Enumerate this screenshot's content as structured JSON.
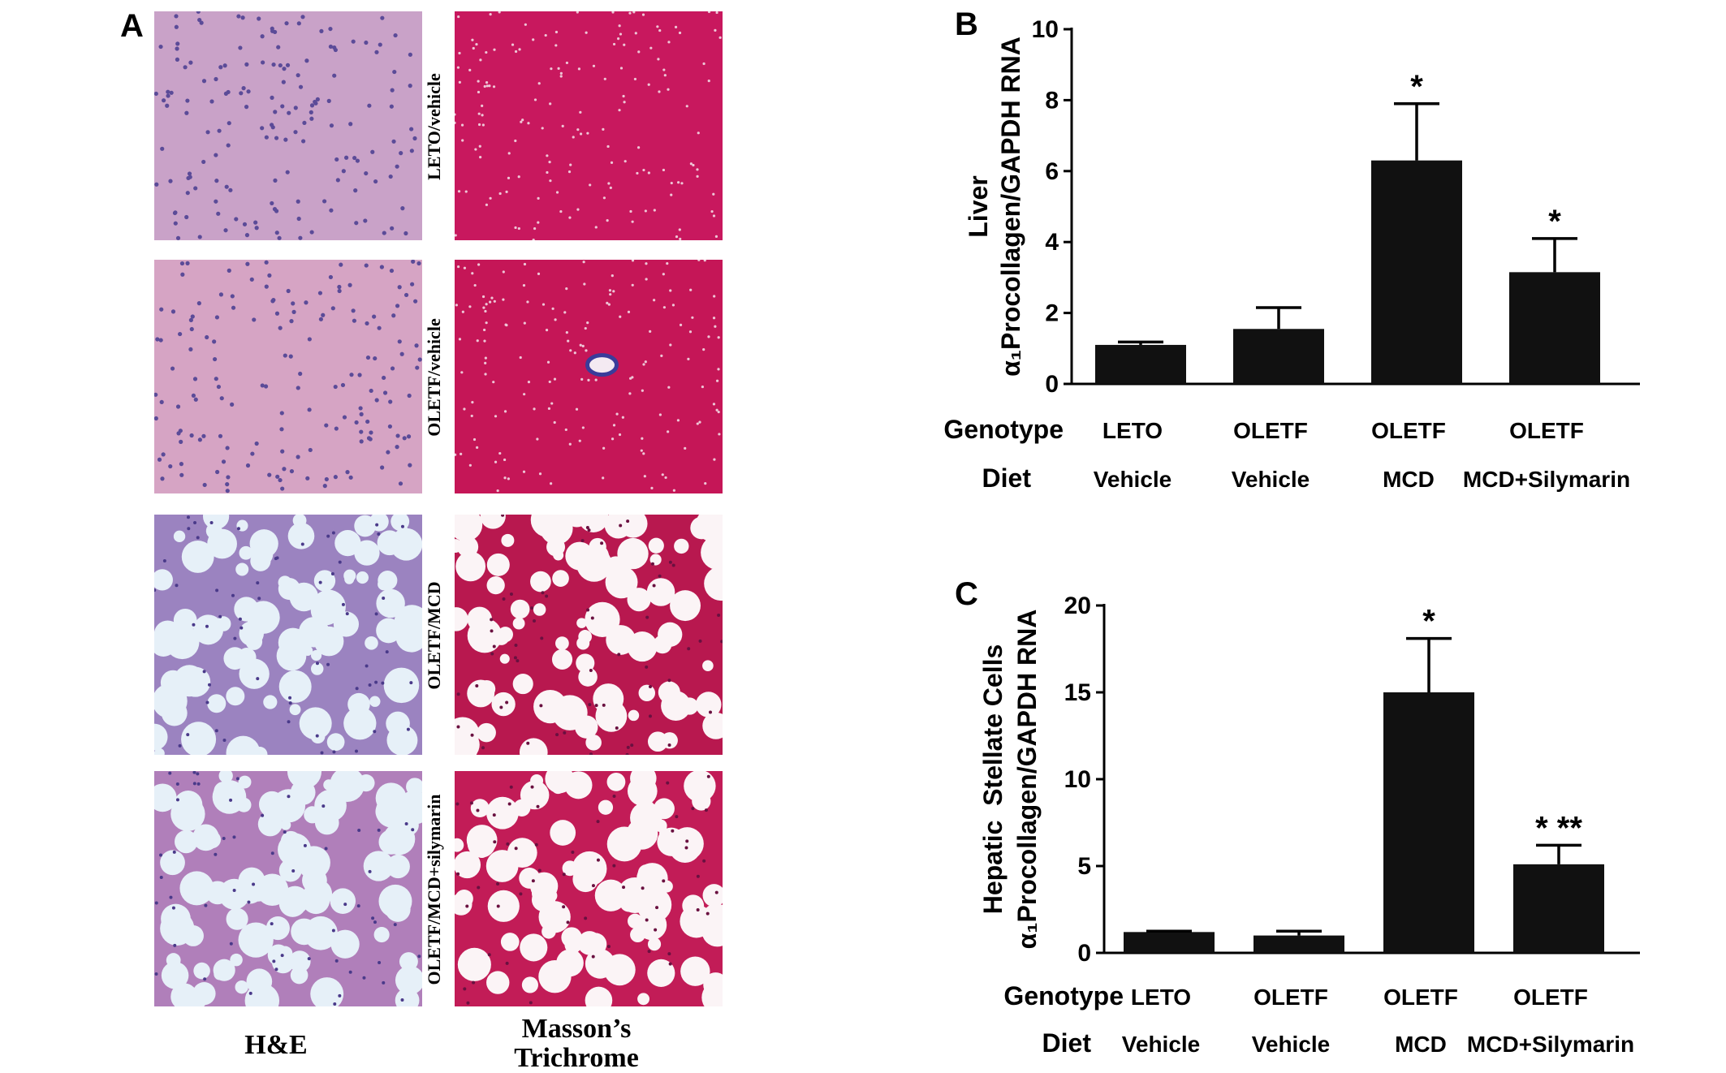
{
  "panel_a": {
    "letter": "A",
    "rows": [
      {
        "label": "LETO/vehicle",
        "he": {
          "bg": "#c9a2c8",
          "vac": 0
        },
        "mt": {
          "bg": "#c8185e",
          "vac": 0
        }
      },
      {
        "label": "OLETF/vehicle",
        "he": {
          "bg": "#d6a4c4",
          "vac": 0
        },
        "mt": {
          "bg": "#c51657",
          "vac": 0
        }
      },
      {
        "label": "OLETF/MCD",
        "he": {
          "bg": "#9b83c0",
          "vac": 1
        },
        "mt": {
          "bg": "#b8184f",
          "vac": 1
        }
      },
      {
        "label": "OLETF/MCD+silymarin",
        "he": {
          "bg": "#b07fba",
          "vac": 1
        },
        "mt": {
          "bg": "#c21c57",
          "vac": 1
        }
      }
    ],
    "columns": [
      "H&E",
      "Masson’s\nTrichrome"
    ]
  },
  "chart_data": [
    {
      "panel": "B",
      "type": "bar",
      "ylabel_line1": "Liver",
      "ylabel_line2": "α₁Procollagen/GAPDH RNA",
      "ylim": [
        0,
        10
      ],
      "yticks": [
        0,
        2,
        4,
        6,
        8,
        10
      ],
      "row_labels": [
        "Genotype",
        "Diet"
      ],
      "genotype": [
        "LETO",
        "OLETF",
        "OLETF",
        "OLETF"
      ],
      "diet": [
        "Vehicle",
        "Vehicle",
        "MCD",
        "MCD+Silymarin"
      ],
      "values": [
        1.1,
        1.55,
        6.3,
        3.15
      ],
      "errors": [
        0.08,
        0.6,
        1.6,
        0.95
      ],
      "annotations": [
        "",
        "",
        "*",
        "*"
      ]
    },
    {
      "panel": "C",
      "type": "bar",
      "ylabel_line1": "Hepatic  Stellate Cells",
      "ylabel_line2": "α₁Procollagen/GAPDH RNA",
      "ylim": [
        0,
        20
      ],
      "yticks": [
        0,
        5,
        10,
        15,
        20
      ],
      "row_labels": [
        "Genotype",
        "Diet"
      ],
      "genotype": [
        "LETO",
        "OLETF",
        "OLETF",
        "OLETF"
      ],
      "diet": [
        "Vehicle",
        "Vehicle",
        "MCD",
        "MCD+Silymarin"
      ],
      "values": [
        1.2,
        1.0,
        15.0,
        5.1
      ],
      "errors": [
        0.05,
        0.25,
        3.1,
        1.1
      ],
      "annotations": [
        "",
        "",
        "*",
        "*  **"
      ]
    }
  ],
  "colors": {
    "bar": "#111111",
    "axis": "#000000"
  }
}
